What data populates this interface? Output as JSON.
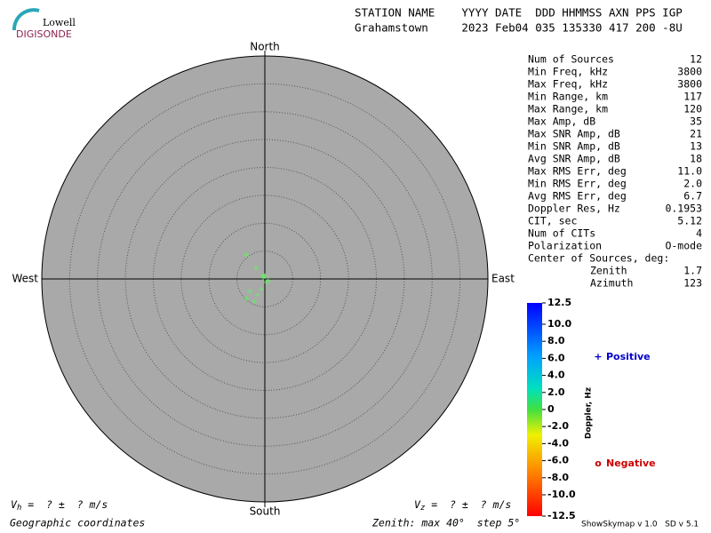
{
  "logo": {
    "top": "Lowell",
    "bottom": "DIGISONDE"
  },
  "header": {
    "line1": "STATION NAME    YYYY DATE  DDD HHMMSS AXN PPS IGP",
    "line2": "Grahamstown     2023 Feb04 035 135330 417 200 -8U"
  },
  "stats": [
    [
      "Num of Sources",
      "12"
    ],
    [
      "Min Freq, kHz",
      "3800"
    ],
    [
      "Max Freq, kHz",
      "3800"
    ],
    [
      "Min Range, km",
      "117"
    ],
    [
      "Max Range, km",
      "120"
    ],
    [
      "Max Amp, dB",
      "35"
    ],
    [
      "Max SNR Amp, dB",
      "21"
    ],
    [
      "Min SNR Amp, dB",
      "13"
    ],
    [
      "Avg SNR Amp, dB",
      "18"
    ],
    [
      "Max RMS Err, deg",
      "11.0"
    ],
    [
      "Min RMS Err, deg",
      "2.0"
    ],
    [
      "Avg RMS Err, deg",
      "6.7"
    ],
    [
      "Doppler Res, Hz",
      "0.1953"
    ],
    [
      "CIT, sec",
      "5.12"
    ],
    [
      "Num of CITs",
      "4"
    ],
    [
      "Polarization",
      "O-mode"
    ]
  ],
  "center": {
    "title": "Center of Sources, deg:",
    "rows": [
      [
        "Zenith",
        "1.7"
      ],
      [
        "Azimuth",
        "123"
      ]
    ]
  },
  "footer": {
    "vh": {
      "symbol": "V",
      "sub": "h",
      "text": " =  ? ±  ? m/s"
    },
    "vz": {
      "symbol": "V",
      "sub": "z",
      "text": " =  ? ±  ? m/s"
    },
    "coords": "Geographic coordinates",
    "zenith": "Zenith: max 40°  step 5°",
    "version": "ShowSkymap v 1.0   SD v 5.1"
  },
  "chart_data": {
    "type": "polar-scatter",
    "directions": {
      "north": "North",
      "south": "South",
      "west": "West",
      "east": "East"
    },
    "rlim": [
      0,
      40
    ],
    "rticks": [
      5,
      10,
      15,
      20,
      25,
      30,
      35,
      40
    ],
    "points": {
      "marker": "+",
      "color": "#66ee66",
      "x": [
        -3.3,
        -1.6,
        -0.3,
        0,
        0.6,
        0.2,
        -0.6,
        -1.3,
        -2.7,
        -3.3,
        -1.9,
        -0.3
      ],
      "y": [
        4.3,
        1.9,
        0.6,
        0.5,
        -0.3,
        -0.6,
        -1.8,
        -2.9,
        -2.2,
        -3.5,
        -4.1,
        0.2
      ]
    },
    "colorbar": {
      "label": "Doppler, Hz",
      "lim": [
        -12.5,
        12.5
      ],
      "ticks": [
        12.5,
        {
          "value": 10,
          "label": "10.0"
        },
        {
          "value": 8,
          "label": "8.0"
        },
        {
          "value": 6,
          "label": "6.0"
        },
        {
          "value": 4,
          "label": "4.0"
        },
        {
          "value": 2,
          "label": "2.0"
        },
        0,
        {
          "value": -2,
          "label": "-2.0"
        },
        {
          "value": -4,
          "label": "-4.0"
        },
        {
          "value": -6,
          "label": "-6.0"
        },
        {
          "value": -8,
          "label": "-8.0"
        },
        {
          "value": -10,
          "label": "-10.0"
        },
        -12.5
      ]
    },
    "legend": [
      {
        "marker": "+",
        "label": "Positive",
        "color": "#0000cc"
      },
      {
        "marker": "o",
        "label": "Negative",
        "color": "#cc0000"
      }
    ]
  }
}
